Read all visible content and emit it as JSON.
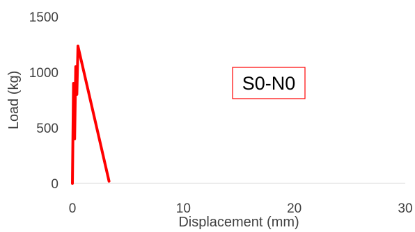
{
  "chart_data": {
    "type": "line",
    "title": "",
    "xlabel": "Displacement (mm)",
    "ylabel": "Load (kg)",
    "xlim": [
      0,
      30
    ],
    "ylim": [
      0,
      1500
    ],
    "x_ticks": [
      0,
      10,
      20,
      30
    ],
    "y_ticks": [
      0,
      500,
      1000,
      1500
    ],
    "x_tick_labels": [
      "0",
      "10",
      "20",
      "30"
    ],
    "y_tick_labels": [
      "0",
      "500",
      "1000",
      "1500"
    ],
    "grid": false,
    "legend": "none",
    "annotation": "S0-N0",
    "series": [
      {
        "color": "#ff0000",
        "x": [
          0,
          0.1,
          0.2,
          0.3,
          0.4,
          0.5,
          3.3
        ],
        "y": [
          0,
          900,
          400,
          1050,
          800,
          1235,
          20
        ]
      }
    ]
  },
  "colors": {
    "series": "#ff0000",
    "annotation_border": "#ff0000",
    "axis": "#d9d9d9",
    "text": "#404040"
  }
}
